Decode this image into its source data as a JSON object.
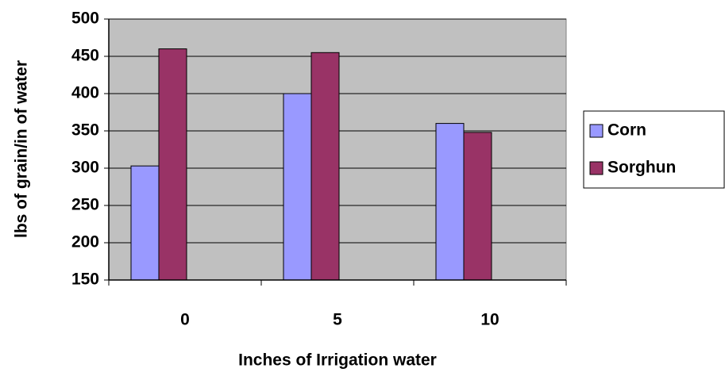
{
  "chart_data": {
    "type": "bar",
    "categories": [
      "0",
      "5",
      "10"
    ],
    "series": [
      {
        "name": "Corn",
        "color": "#9999ff",
        "values": [
          303,
          400,
          360
        ]
      },
      {
        "name": "Sorghun",
        "color": "#993366",
        "values": [
          460,
          455,
          348
        ]
      }
    ],
    "xlabel": "Inches of Irrigation water",
    "ylabel": "lbs of grain/in of water",
    "ylim": [
      150,
      500
    ],
    "yticks": [
      150,
      200,
      250,
      300,
      350,
      400,
      450,
      500
    ],
    "grid": true,
    "legend": "right",
    "plot_background": "#c0c0c0"
  }
}
